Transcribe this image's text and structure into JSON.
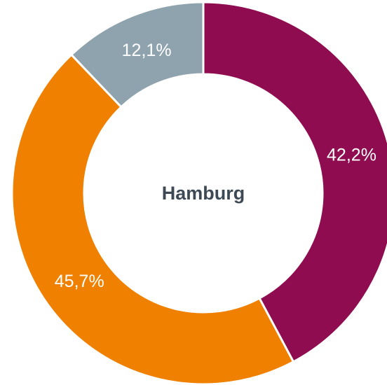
{
  "chart_data": {
    "type": "donut",
    "title": "Hamburg",
    "values": [
      42.2,
      45.7,
      12.1
    ],
    "value_labels": [
      "42,2%",
      "45,7%",
      "12,1%"
    ],
    "colors": [
      "#8e0c4f",
      "#f08000",
      "#8fa3af"
    ]
  }
}
